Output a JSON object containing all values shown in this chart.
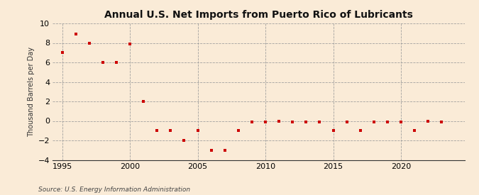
{
  "title": "Annual U.S. Net Imports from Puerto Rico of Lubricants",
  "ylabel": "Thousand Barrels per Day",
  "source": "Source: U.S. Energy Information Administration",
  "background_color": "#faebd7",
  "marker_color": "#cc0000",
  "xlim": [
    1994.3,
    2024.7
  ],
  "ylim": [
    -4,
    10
  ],
  "yticks": [
    -4,
    -2,
    0,
    2,
    4,
    6,
    8,
    10
  ],
  "xticks": [
    1995,
    2000,
    2005,
    2010,
    2015,
    2020
  ],
  "data": [
    [
      1995,
      7.0
    ],
    [
      1996,
      8.9
    ],
    [
      1997,
      8.0
    ],
    [
      1998,
      6.0
    ],
    [
      1999,
      6.0
    ],
    [
      2000,
      7.9
    ],
    [
      2001,
      2.0
    ],
    [
      2002,
      -1.0
    ],
    [
      2003,
      -1.0
    ],
    [
      2004,
      -2.0
    ],
    [
      2005,
      -1.0
    ],
    [
      2006,
      -3.0
    ],
    [
      2007,
      -3.0
    ],
    [
      2008,
      -1.0
    ],
    [
      2009,
      -0.1
    ],
    [
      2010,
      -0.1
    ],
    [
      2011,
      0.0
    ],
    [
      2012,
      -0.1
    ],
    [
      2013,
      -0.1
    ],
    [
      2014,
      -0.1
    ],
    [
      2015,
      -1.0
    ],
    [
      2016,
      -0.1
    ],
    [
      2017,
      -1.0
    ],
    [
      2018,
      -0.1
    ],
    [
      2019,
      -0.1
    ],
    [
      2020,
      -0.1
    ],
    [
      2021,
      -1.0
    ],
    [
      2022,
      0.0
    ],
    [
      2023,
      -0.1
    ]
  ]
}
